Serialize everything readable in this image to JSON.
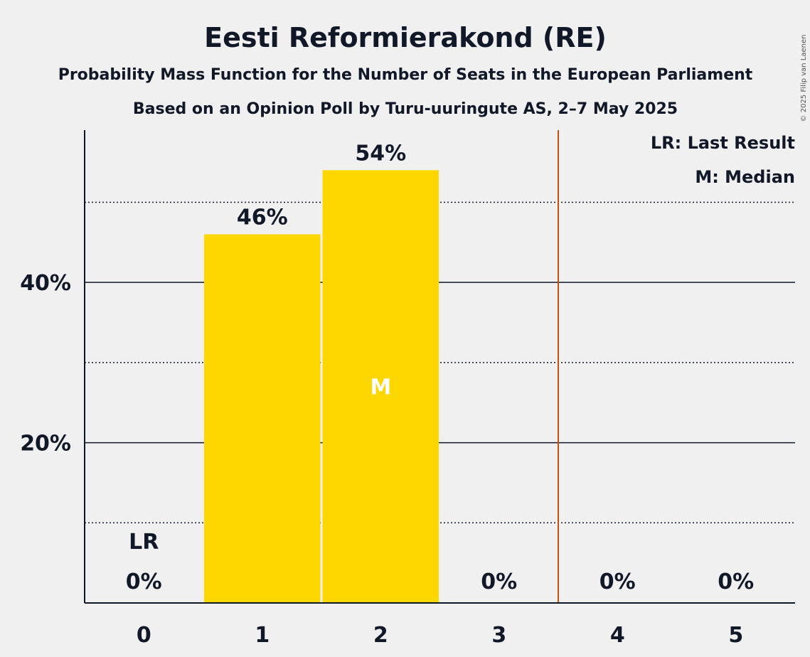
{
  "chart_data": {
    "type": "bar",
    "title": "Eesti Reformierakond (RE)",
    "subtitle": "Probability Mass Function for the Number of Seats in the European Parliament",
    "subtitle2": "Based on an Opinion Poll by Turu-uuringute AS, 2–7 May 2025",
    "categories": [
      "0",
      "1",
      "2",
      "3",
      "4",
      "5"
    ],
    "values": [
      0,
      46,
      54,
      0,
      0,
      0
    ],
    "value_labels": [
      "0%",
      "46%",
      "54%",
      "0%",
      "0%",
      "0%"
    ],
    "ylim": [
      0,
      59
    ],
    "y_ticks": [
      20,
      40
    ],
    "y_tick_labels": [
      "20%",
      "40%"
    ],
    "y_minor_dotted": [
      10,
      30,
      50
    ],
    "bar_color": "#ffd700",
    "last_result_seat": 0,
    "last_result_label": "LR",
    "median_seat": 2,
    "median_label": "M",
    "majority_line_color": "#c0500a",
    "legend": [
      "LR: Last Result",
      "M: Median"
    ],
    "legend_position": "top-right",
    "copyright": "© 2025 Filip van Laenen"
  }
}
